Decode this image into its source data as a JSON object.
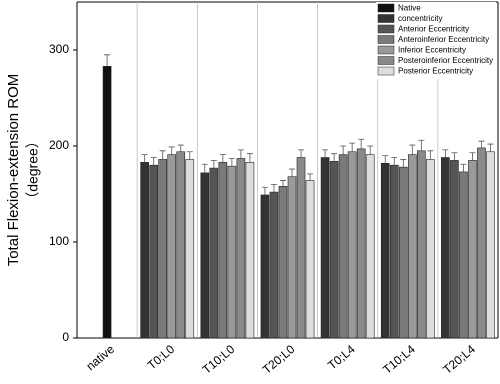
{
  "chart_data": {
    "type": "bar",
    "y_label": [
      "Total Flexion-extension ROM",
      "（degree）"
    ],
    "categories": [
      "native",
      "T0;L0",
      "T10;L0",
      "T20;L0",
      "T0;L4",
      "T10;L4",
      "T20;L4"
    ],
    "series": [
      {
        "name": "Native",
        "color": "#111111",
        "values": [
          283,
          null,
          null,
          null,
          null,
          null,
          null
        ],
        "errors": [
          12,
          null,
          null,
          null,
          null,
          null,
          null
        ]
      },
      {
        "name": "concentricity",
        "color": "#333333",
        "values": [
          null,
          183,
          172,
          149,
          188,
          182,
          188
        ],
        "errors": [
          null,
          8,
          9,
          8,
          8,
          8,
          8
        ]
      },
      {
        "name": "Anterior Eccentricity",
        "color": "#555555",
        "values": [
          null,
          180,
          177,
          152,
          184,
          180,
          185
        ],
        "errors": [
          null,
          8,
          8,
          8,
          8,
          8,
          8
        ]
      },
      {
        "name": "Anteroinferior Eccentricity",
        "color": "#7a7a7a",
        "values": [
          null,
          186,
          183,
          158,
          191,
          178,
          173
        ],
        "errors": [
          null,
          9,
          8,
          6,
          9,
          8,
          8
        ]
      },
      {
        "name": "Inferior Eccentricity",
        "color": "#9a9a9a",
        "values": [
          null,
          191,
          179,
          168,
          194,
          191,
          185
        ],
        "errors": [
          null,
          8,
          8,
          8,
          9,
          10,
          8
        ]
      },
      {
        "name": "Posteroinferior Eccentricity",
        "color": "#8a8a8a",
        "values": [
          null,
          194,
          187,
          188,
          197,
          195,
          198
        ],
        "errors": [
          null,
          7,
          9,
          8,
          10,
          11,
          7
        ]
      },
      {
        "name": "Posterior Eccentricity",
        "color": "#dddddd",
        "values": [
          null,
          186,
          183,
          164,
          191,
          186,
          194
        ],
        "errors": [
          null,
          8,
          9,
          7,
          9,
          9,
          8
        ]
      }
    ],
    "ylim": [
      0,
      350
    ],
    "yticks": [
      0,
      100,
      200,
      300
    ],
    "legend": "upper right"
  }
}
